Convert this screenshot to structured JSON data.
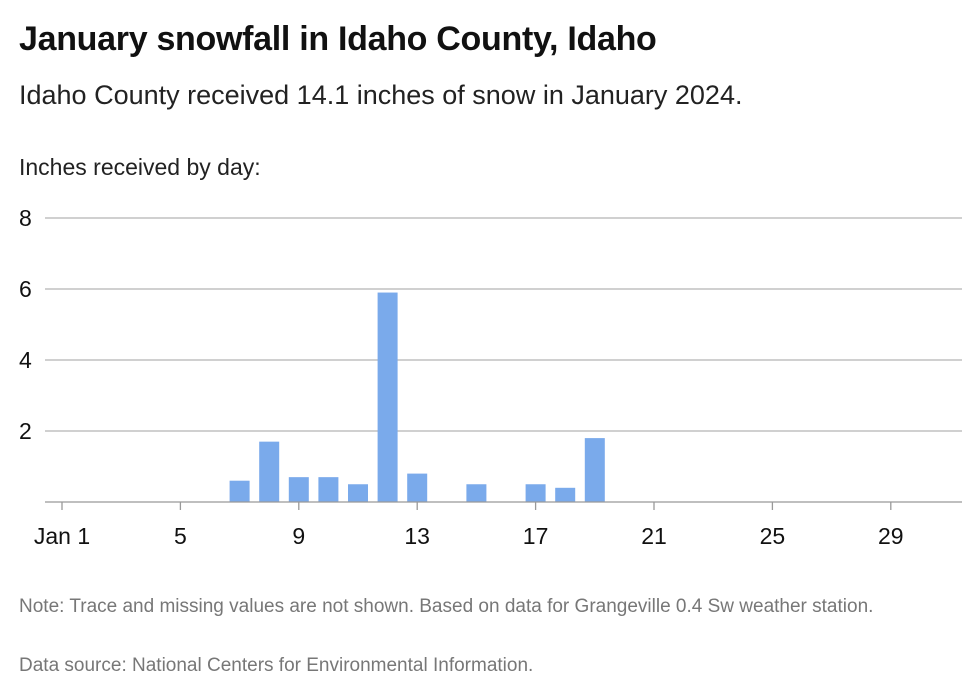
{
  "title": "January snowfall in Idaho County, Idaho",
  "subtitle": "Idaho County received 14.1 inches of snow in January 2024.",
  "note": "Note: Trace and missing values are not shown. Based on data for Grangeville 0.4 Sw weather station.",
  "source": "Data source: National Centers for Environmental Information.",
  "chart_data": {
    "type": "bar",
    "ylabel": "Inches received by day:",
    "xlabel": "",
    "ylim": [
      0,
      8
    ],
    "yticks": [
      2,
      4,
      6,
      8
    ],
    "x_range": [
      1,
      31
    ],
    "xticks": [
      {
        "day": 1,
        "label": "Jan 1"
      },
      {
        "day": 5,
        "label": "5"
      },
      {
        "day": 9,
        "label": "9"
      },
      {
        "day": 13,
        "label": "13"
      },
      {
        "day": 17,
        "label": "17"
      },
      {
        "day": 21,
        "label": "21"
      },
      {
        "day": 25,
        "label": "25"
      },
      {
        "day": 29,
        "label": "29"
      }
    ],
    "grid": true,
    "bar_color": "#7aaaeb",
    "days": [
      7,
      8,
      9,
      10,
      11,
      12,
      13,
      15,
      17,
      18,
      19
    ],
    "values": [
      0.6,
      1.7,
      0.7,
      0.7,
      0.5,
      5.9,
      0.8,
      0.5,
      0.5,
      0.4,
      1.8
    ]
  }
}
